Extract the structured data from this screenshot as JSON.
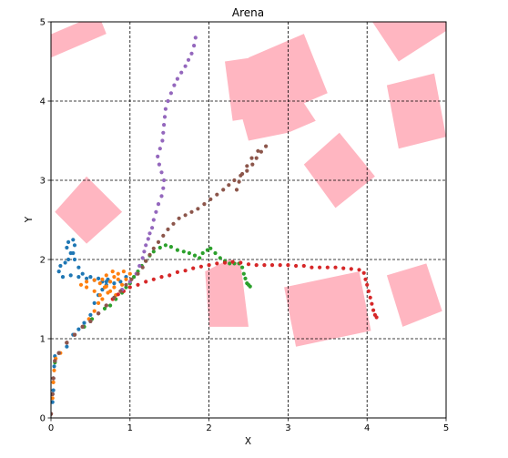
{
  "chart_data": {
    "type": "scatter",
    "title": "Arena",
    "xlabel": "X",
    "ylabel": "Y",
    "xlim": [
      0,
      5
    ],
    "ylim": [
      0,
      5
    ],
    "xticks": [
      "0",
      "1",
      "2",
      "3",
      "4",
      "5"
    ],
    "yticks": [
      "0",
      "1",
      "2",
      "3",
      "4",
      "5"
    ],
    "grid": true,
    "grid_style": "dashed",
    "obstacle_color": "#ffb6c1",
    "obstacles": [
      [
        [
          0.0,
          4.55
        ],
        [
          0.7,
          4.85
        ],
        [
          0.6,
          5.1
        ],
        [
          -0.1,
          4.8
        ]
      ],
      [
        [
          2.2,
          4.5
        ],
        [
          2.9,
          4.6
        ],
        [
          2.95,
          3.85
        ],
        [
          2.3,
          3.75
        ]
      ],
      [
        [
          2.5,
          4.55
        ],
        [
          3.2,
          4.85
        ],
        [
          3.5,
          4.1
        ],
        [
          2.8,
          3.8
        ]
      ],
      [
        [
          2.25,
          4.4
        ],
        [
          2.85,
          4.5
        ],
        [
          3.35,
          3.75
        ],
        [
          3.0,
          3.6
        ],
        [
          2.5,
          3.5
        ]
      ],
      [
        [
          4.0,
          5.1
        ],
        [
          4.4,
          4.5
        ],
        [
          5.1,
          4.95
        ],
        [
          5.0,
          5.1
        ]
      ],
      [
        [
          4.25,
          4.2
        ],
        [
          4.85,
          4.35
        ],
        [
          5.0,
          3.55
        ],
        [
          4.4,
          3.4
        ]
      ],
      [
        [
          3.2,
          3.2
        ],
        [
          3.65,
          3.6
        ],
        [
          4.1,
          3.05
        ],
        [
          3.6,
          2.65
        ]
      ],
      [
        [
          0.05,
          2.6
        ],
        [
          0.45,
          3.05
        ],
        [
          0.9,
          2.6
        ],
        [
          0.45,
          2.2
        ]
      ],
      [
        [
          2.25,
          2.0
        ],
        [
          2.4,
          1.95
        ],
        [
          2.5,
          1.15
        ],
        [
          2.0,
          1.15
        ],
        [
          1.95,
          1.85
        ]
      ],
      [
        [
          2.95,
          1.65
        ],
        [
          3.9,
          1.85
        ],
        [
          4.05,
          1.1
        ],
        [
          3.1,
          0.9
        ]
      ],
      [
        [
          4.25,
          1.8
        ],
        [
          4.75,
          1.95
        ],
        [
          4.95,
          1.35
        ],
        [
          4.45,
          1.15
        ]
      ]
    ],
    "series": [
      {
        "color": "#1f77b4",
        "points": [
          [
            0.0,
            0.05
          ],
          [
            0.02,
            0.2
          ],
          [
            0.03,
            0.35
          ],
          [
            0.03,
            0.5
          ],
          [
            0.04,
            0.65
          ],
          [
            0.05,
            0.78
          ],
          [
            0.1,
            0.82
          ],
          [
            0.2,
            0.9
          ],
          [
            0.28,
            1.05
          ],
          [
            0.35,
            1.12
          ],
          [
            0.42,
            1.2
          ],
          [
            0.5,
            1.3
          ],
          [
            0.55,
            1.45
          ],
          [
            0.6,
            1.55
          ],
          [
            0.65,
            1.62
          ],
          [
            0.7,
            1.68
          ],
          [
            0.72,
            1.75
          ],
          [
            0.65,
            1.72
          ],
          [
            0.55,
            1.74
          ],
          [
            0.45,
            1.76
          ],
          [
            0.35,
            1.78
          ],
          [
            0.25,
            1.8
          ],
          [
            0.15,
            1.78
          ],
          [
            0.1,
            1.85
          ],
          [
            0.12,
            1.92
          ],
          [
            0.18,
            1.96
          ],
          [
            0.22,
            2.0
          ],
          [
            0.25,
            2.08
          ],
          [
            0.2,
            2.15
          ],
          [
            0.22,
            2.22
          ],
          [
            0.28,
            2.25
          ],
          [
            0.3,
            2.18
          ],
          [
            0.28,
            2.08
          ],
          [
            0.3,
            2.0
          ],
          [
            0.35,
            1.9
          ],
          [
            0.4,
            1.82
          ],
          [
            0.5,
            1.78
          ],
          [
            0.6,
            1.76
          ],
          [
            0.7,
            1.72
          ],
          [
            0.8,
            1.7
          ],
          [
            0.88,
            1.72
          ],
          [
            0.95,
            1.78
          ]
        ]
      },
      {
        "color": "#ff7f0e",
        "points": [
          [
            0.0,
            0.05
          ],
          [
            0.02,
            0.25
          ],
          [
            0.03,
            0.45
          ],
          [
            0.04,
            0.6
          ],
          [
            0.06,
            0.75
          ],
          [
            0.12,
            0.82
          ],
          [
            0.2,
            0.95
          ],
          [
            0.3,
            1.05
          ],
          [
            0.4,
            1.15
          ],
          [
            0.48,
            1.25
          ],
          [
            0.55,
            1.35
          ],
          [
            0.6,
            1.45
          ],
          [
            0.62,
            1.55
          ],
          [
            0.55,
            1.6
          ],
          [
            0.45,
            1.65
          ],
          [
            0.38,
            1.68
          ],
          [
            0.45,
            1.72
          ],
          [
            0.55,
            1.74
          ],
          [
            0.62,
            1.7
          ],
          [
            0.7,
            1.66
          ],
          [
            0.75,
            1.72
          ],
          [
            0.8,
            1.78
          ],
          [
            0.85,
            1.82
          ],
          [
            0.78,
            1.85
          ],
          [
            0.7,
            1.8
          ],
          [
            0.65,
            1.75
          ],
          [
            0.68,
            1.65
          ],
          [
            0.75,
            1.6
          ],
          [
            0.82,
            1.55
          ],
          [
            0.88,
            1.6
          ],
          [
            0.9,
            1.68
          ],
          [
            0.95,
            1.75
          ],
          [
            1.0,
            1.82
          ],
          [
            0.92,
            1.85
          ],
          [
            0.85,
            1.75
          ],
          [
            0.8,
            1.65
          ],
          [
            0.72,
            1.58
          ],
          [
            0.65,
            1.5
          ]
        ]
      },
      {
        "color": "#2ca02c",
        "points": [
          [
            0.0,
            0.05
          ],
          [
            0.02,
            0.3
          ],
          [
            0.03,
            0.5
          ],
          [
            0.05,
            0.7
          ],
          [
            0.1,
            0.82
          ],
          [
            0.2,
            0.95
          ],
          [
            0.3,
            1.05
          ],
          [
            0.42,
            1.15
          ],
          [
            0.52,
            1.25
          ],
          [
            0.6,
            1.32
          ],
          [
            0.68,
            1.38
          ],
          [
            0.75,
            1.42
          ],
          [
            0.82,
            1.5
          ],
          [
            0.9,
            1.58
          ],
          [
            0.95,
            1.65
          ],
          [
            1.0,
            1.7
          ],
          [
            1.05,
            1.78
          ],
          [
            1.1,
            1.85
          ],
          [
            1.15,
            1.92
          ],
          [
            1.2,
            1.98
          ],
          [
            1.25,
            2.05
          ],
          [
            1.3,
            2.1
          ],
          [
            1.38,
            2.15
          ],
          [
            1.45,
            2.18
          ],
          [
            1.52,
            2.16
          ],
          [
            1.6,
            2.12
          ],
          [
            1.68,
            2.1
          ],
          [
            1.75,
            2.08
          ],
          [
            1.82,
            2.05
          ],
          [
            1.88,
            2.02
          ],
          [
            1.92,
            2.08
          ],
          [
            1.98,
            2.12
          ],
          [
            2.02,
            2.14
          ],
          [
            2.08,
            2.08
          ],
          [
            2.14,
            2.02
          ],
          [
            2.2,
            1.98
          ],
          [
            2.26,
            1.95
          ],
          [
            2.32,
            1.95
          ],
          [
            2.38,
            1.95
          ],
          [
            2.42,
            1.9
          ],
          [
            2.44,
            1.82
          ],
          [
            2.46,
            1.76
          ],
          [
            2.48,
            1.7
          ],
          [
            2.5,
            1.68
          ],
          [
            2.52,
            1.66
          ]
        ]
      },
      {
        "color": "#d62728",
        "points": [
          [
            0.0,
            0.05
          ],
          [
            0.02,
            0.3
          ],
          [
            0.03,
            0.5
          ],
          [
            0.05,
            0.72
          ],
          [
            0.1,
            0.82
          ],
          [
            0.2,
            0.95
          ],
          [
            0.3,
            1.05
          ],
          [
            0.4,
            1.15
          ],
          [
            0.5,
            1.22
          ],
          [
            0.6,
            1.32
          ],
          [
            0.7,
            1.42
          ],
          [
            0.78,
            1.5
          ],
          [
            0.85,
            1.56
          ],
          [
            0.92,
            1.6
          ],
          [
            1.0,
            1.65
          ],
          [
            1.1,
            1.68
          ],
          [
            1.2,
            1.72
          ],
          [
            1.3,
            1.75
          ],
          [
            1.4,
            1.78
          ],
          [
            1.5,
            1.8
          ],
          [
            1.6,
            1.84
          ],
          [
            1.7,
            1.86
          ],
          [
            1.8,
            1.89
          ],
          [
            1.9,
            1.91
          ],
          [
            2.0,
            1.93
          ],
          [
            2.1,
            1.95
          ],
          [
            2.2,
            1.96
          ],
          [
            2.3,
            1.97
          ],
          [
            2.4,
            1.96
          ],
          [
            2.5,
            1.94
          ],
          [
            2.6,
            1.93
          ],
          [
            2.7,
            1.93
          ],
          [
            2.8,
            1.93
          ],
          [
            2.9,
            1.93
          ],
          [
            3.0,
            1.93
          ],
          [
            3.1,
            1.92
          ],
          [
            3.2,
            1.92
          ],
          [
            3.3,
            1.9
          ],
          [
            3.4,
            1.9
          ],
          [
            3.5,
            1.9
          ],
          [
            3.6,
            1.9
          ],
          [
            3.7,
            1.89
          ],
          [
            3.8,
            1.88
          ],
          [
            3.9,
            1.87
          ],
          [
            3.96,
            1.83
          ],
          [
            3.98,
            1.75
          ],
          [
            4.0,
            1.68
          ],
          [
            4.02,
            1.6
          ],
          [
            4.04,
            1.52
          ],
          [
            4.06,
            1.44
          ],
          [
            4.08,
            1.36
          ],
          [
            4.1,
            1.3
          ],
          [
            4.12,
            1.27
          ]
        ]
      },
      {
        "color": "#9467bd",
        "points": [
          [
            0.0,
            0.05
          ],
          [
            0.02,
            0.3
          ],
          [
            0.03,
            0.5
          ],
          [
            0.05,
            0.72
          ],
          [
            0.1,
            0.82
          ],
          [
            0.2,
            0.95
          ],
          [
            0.3,
            1.05
          ],
          [
            0.4,
            1.15
          ],
          [
            0.5,
            1.22
          ],
          [
            0.6,
            1.32
          ],
          [
            0.7,
            1.42
          ],
          [
            0.8,
            1.52
          ],
          [
            0.9,
            1.62
          ],
          [
            1.0,
            1.72
          ],
          [
            1.08,
            1.82
          ],
          [
            1.12,
            1.92
          ],
          [
            1.16,
            2.02
          ],
          [
            1.18,
            2.1
          ],
          [
            1.2,
            2.18
          ],
          [
            1.23,
            2.26
          ],
          [
            1.25,
            2.33
          ],
          [
            1.28,
            2.4
          ],
          [
            1.3,
            2.5
          ],
          [
            1.33,
            2.6
          ],
          [
            1.36,
            2.7
          ],
          [
            1.4,
            2.8
          ],
          [
            1.42,
            2.9
          ],
          [
            1.43,
            3.0
          ],
          [
            1.4,
            3.1
          ],
          [
            1.37,
            3.2
          ],
          [
            1.35,
            3.3
          ],
          [
            1.38,
            3.4
          ],
          [
            1.41,
            3.5
          ],
          [
            1.42,
            3.6
          ],
          [
            1.43,
            3.7
          ],
          [
            1.44,
            3.8
          ],
          [
            1.45,
            3.9
          ],
          [
            1.48,
            4.0
          ],
          [
            1.52,
            4.1
          ],
          [
            1.56,
            4.2
          ],
          [
            1.6,
            4.28
          ],
          [
            1.65,
            4.36
          ],
          [
            1.7,
            4.44
          ],
          [
            1.74,
            4.52
          ],
          [
            1.78,
            4.6
          ],
          [
            1.81,
            4.7
          ],
          [
            1.83,
            4.8
          ]
        ]
      },
      {
        "color": "#8c564b",
        "points": [
          [
            0.0,
            0.05
          ],
          [
            0.02,
            0.3
          ],
          [
            0.03,
            0.5
          ],
          [
            0.05,
            0.72
          ],
          [
            0.1,
            0.82
          ],
          [
            0.2,
            0.95
          ],
          [
            0.3,
            1.05
          ],
          [
            0.4,
            1.15
          ],
          [
            0.5,
            1.22
          ],
          [
            0.6,
            1.32
          ],
          [
            0.7,
            1.42
          ],
          [
            0.8,
            1.52
          ],
          [
            0.88,
            1.6
          ],
          [
            0.95,
            1.68
          ],
          [
            1.02,
            1.75
          ],
          [
            1.1,
            1.82
          ],
          [
            1.16,
            1.9
          ],
          [
            1.2,
            1.98
          ],
          [
            1.25,
            2.06
          ],
          [
            1.3,
            2.14
          ],
          [
            1.36,
            2.22
          ],
          [
            1.42,
            2.3
          ],
          [
            1.48,
            2.38
          ],
          [
            1.55,
            2.45
          ],
          [
            1.62,
            2.52
          ],
          [
            1.7,
            2.56
          ],
          [
            1.78,
            2.6
          ],
          [
            1.86,
            2.64
          ],
          [
            1.94,
            2.7
          ],
          [
            2.02,
            2.76
          ],
          [
            2.1,
            2.82
          ],
          [
            2.18,
            2.88
          ],
          [
            2.25,
            2.94
          ],
          [
            2.32,
            3.0
          ],
          [
            2.4,
            3.06
          ],
          [
            2.48,
            3.12
          ],
          [
            2.55,
            3.2
          ],
          [
            2.6,
            3.28
          ],
          [
            2.66,
            3.36
          ],
          [
            2.72,
            3.43
          ],
          [
            2.62,
            3.37
          ],
          [
            2.54,
            3.28
          ],
          [
            2.48,
            3.18
          ],
          [
            2.42,
            3.08
          ],
          [
            2.38,
            2.98
          ],
          [
            2.35,
            2.88
          ]
        ]
      }
    ]
  }
}
